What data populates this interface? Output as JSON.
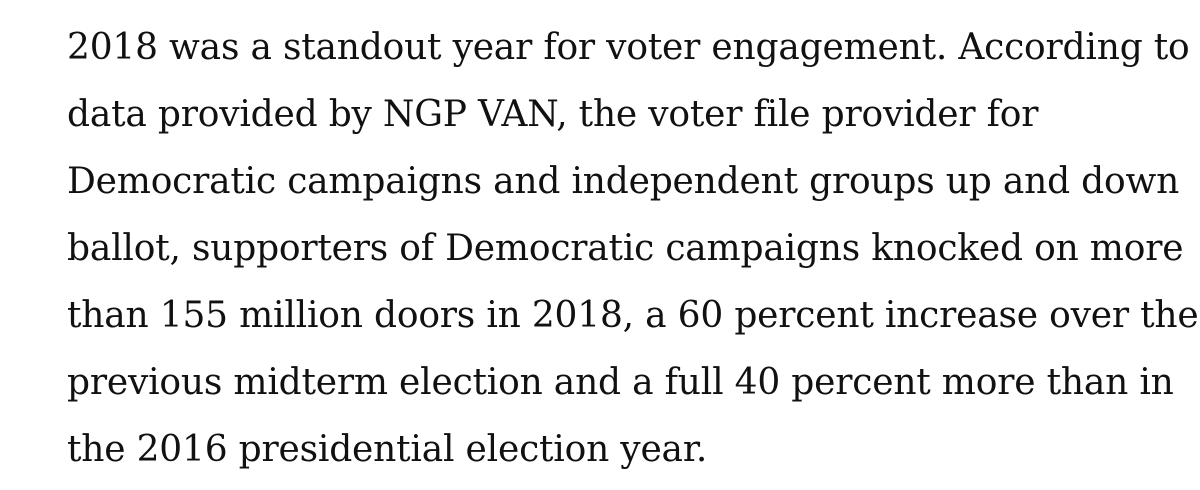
{
  "article": {
    "paragraph_lines": [
      "2018 was a standout year for voter engagement. According to",
      "data provided by NGP VAN, the voter file provider for",
      "Democratic campaigns and independent groups up and down",
      "ballot, supporters of Democratic campaigns knocked on more",
      "than 155 million doors in 2018, a 60 percent increase over the",
      "previous midterm election and a full 40 percent more than in",
      "the 2016 presidential election year."
    ]
  }
}
